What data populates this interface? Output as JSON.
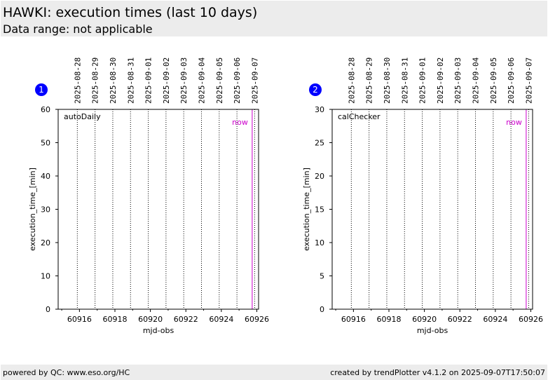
{
  "header": {
    "title": "HAWKI: execution times (last 10 days)",
    "subtitle": "Data range: not applicable"
  },
  "footer": {
    "left": "powered by QC: www.eso.org/HC",
    "right": "created by trendPlotter v4.1.2 on 2025-09-07T17:50:07"
  },
  "colors": {
    "badge": "#0000ff",
    "now_line": "#cc00cc",
    "header_bg": "#ececec"
  },
  "chart_data": [
    {
      "type": "line",
      "badge": "1",
      "label": "autoDaily",
      "xlabel": "mjd-obs",
      "ylabel": "execution_time_[min]",
      "xlim": [
        60914.8,
        60926.1
      ],
      "ylim": [
        0,
        60
      ],
      "xticks": [
        60916,
        60918,
        60920,
        60922,
        60924,
        60926
      ],
      "yticks": [
        0,
        10,
        20,
        30,
        40,
        50,
        60
      ],
      "date_lines": [
        {
          "date": "2025-08-28",
          "mjd": 60915.88
        },
        {
          "date": "2025-08-29",
          "mjd": 60916.88
        },
        {
          "date": "2025-08-30",
          "mjd": 60917.88
        },
        {
          "date": "2025-08-31",
          "mjd": 60918.88
        },
        {
          "date": "2025-09-01",
          "mjd": 60919.88
        },
        {
          "date": "2025-09-02",
          "mjd": 60920.88
        },
        {
          "date": "2025-09-03",
          "mjd": 60921.88
        },
        {
          "date": "2025-09-04",
          "mjd": 60922.88
        },
        {
          "date": "2025-09-05",
          "mjd": 60923.88
        },
        {
          "date": "2025-09-06",
          "mjd": 60924.88
        },
        {
          "date": "2025-09-07",
          "mjd": 60925.88
        }
      ],
      "now_mjd": 60925.74,
      "now_label": "now",
      "series": []
    },
    {
      "type": "line",
      "badge": "2",
      "label": "calChecker",
      "xlabel": "mjd-obs",
      "ylabel": "execution_time_[min]",
      "xlim": [
        60914.8,
        60926.1
      ],
      "ylim": [
        0,
        30
      ],
      "xticks": [
        60916,
        60918,
        60920,
        60922,
        60924,
        60926
      ],
      "yticks": [
        0,
        5,
        10,
        15,
        20,
        25,
        30
      ],
      "date_lines": [
        {
          "date": "2025-08-28",
          "mjd": 60915.88
        },
        {
          "date": "2025-08-29",
          "mjd": 60916.88
        },
        {
          "date": "2025-08-30",
          "mjd": 60917.88
        },
        {
          "date": "2025-08-31",
          "mjd": 60918.88
        },
        {
          "date": "2025-09-01",
          "mjd": 60919.88
        },
        {
          "date": "2025-09-02",
          "mjd": 60920.88
        },
        {
          "date": "2025-09-03",
          "mjd": 60921.88
        },
        {
          "date": "2025-09-04",
          "mjd": 60922.88
        },
        {
          "date": "2025-09-05",
          "mjd": 60923.88
        },
        {
          "date": "2025-09-06",
          "mjd": 60924.88
        },
        {
          "date": "2025-09-07",
          "mjd": 60925.88
        }
      ],
      "now_mjd": 60925.74,
      "now_label": "now",
      "series": []
    }
  ]
}
